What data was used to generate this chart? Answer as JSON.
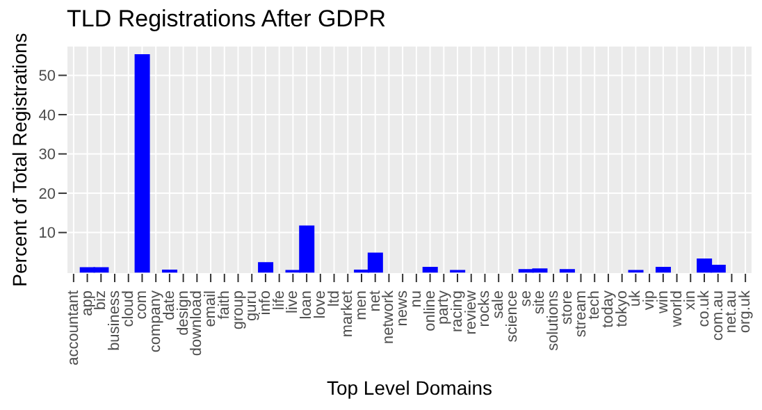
{
  "chart_data": {
    "type": "bar",
    "title": "TLD Registrations After GDPR",
    "xlabel": "Top Level Domains",
    "ylabel": "Percent of Total Registrations",
    "categories": [
      "accountant",
      "app",
      "biz",
      "business",
      "cloud",
      "com",
      "company",
      "date",
      "design",
      "download",
      "email",
      "faith",
      "group",
      "guru",
      "info",
      "life",
      "live",
      "loan",
      "love",
      "ltd",
      "market",
      "men",
      "net",
      "network",
      "news",
      "nu",
      "online",
      "party",
      "racing",
      "review",
      "rocks",
      "sale",
      "science",
      "se",
      "site",
      "solutions",
      "store",
      "stream",
      "tech",
      "today",
      "tokyo",
      "uk",
      "vip",
      "win",
      "world",
      "xin",
      "co.uk",
      "com.au",
      "net.au",
      "org.uk"
    ],
    "values": [
      0,
      1,
      1,
      0,
      0,
      55.2,
      0,
      0.4,
      0,
      0,
      0,
      0,
      0,
      0,
      2.3,
      0,
      0.3,
      11.6,
      0,
      0,
      0,
      0.4,
      4.7,
      0,
      0,
      0,
      1.1,
      0,
      0.3,
      0,
      0,
      0,
      0,
      0.5,
      0.7,
      0,
      0.5,
      0,
      0,
      0,
      0,
      0.3,
      0,
      1.1,
      0,
      0,
      3.2,
      1.6,
      0,
      0
    ],
    "color": "#0000ff",
    "ylim": [
      -0.5,
      57.5
    ],
    "yticks": [
      10,
      20,
      30,
      40,
      50
    ],
    "grid": true
  }
}
